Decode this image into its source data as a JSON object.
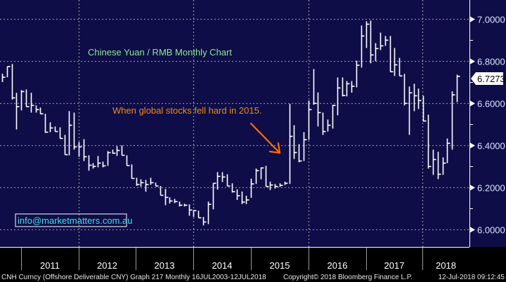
{
  "chart_data": {
    "type": "ohlc-bar",
    "title": "Chinese Yuan / RMB Monthly Chart",
    "annotation": "When global stocks fell hard in 2015.",
    "watermark_email": "info@marketmatters.com.au",
    "ylim": [
      5.92,
      7.09
    ],
    "yticks": [
      6.0,
      6.2,
      6.4,
      6.6,
      6.8,
      7.0
    ],
    "ytick_labels": [
      "6.0000",
      "6.2000",
      "6.4000",
      "6.6000",
      "6.8000",
      "7.0000"
    ],
    "last_price_label": "6.7273",
    "last_price": 6.7273,
    "x_tick_labels": [
      "2011",
      "2012",
      "2013",
      "2014",
      "2015",
      "2016",
      "2017",
      "2018"
    ],
    "grid": true,
    "bar_fields": [
      "high",
      "low",
      "close"
    ],
    "bars": [
      [
        6.74,
        6.7,
        6.723
      ],
      [
        6.774,
        6.723,
        6.774
      ],
      [
        6.786,
        6.617,
        6.625
      ],
      [
        6.649,
        6.475,
        6.583
      ],
      [
        6.662,
        6.565,
        6.655
      ],
      [
        6.665,
        6.583,
        6.583
      ],
      [
        6.649,
        6.555,
        6.589
      ],
      [
        6.589,
        6.555,
        6.569
      ],
      [
        6.579,
        6.549,
        6.549
      ],
      [
        6.549,
        6.459,
        6.462
      ],
      [
        6.509,
        6.462,
        6.482
      ],
      [
        6.489,
        6.465,
        6.465
      ],
      [
        6.485,
        6.432,
        6.432
      ],
      [
        6.449,
        6.355,
        6.355
      ],
      [
        6.562,
        6.352,
        6.495
      ],
      [
        6.555,
        6.379,
        6.392
      ],
      [
        6.415,
        6.345,
        6.392
      ],
      [
        6.429,
        6.325,
        6.345
      ],
      [
        6.352,
        6.279,
        6.305
      ],
      [
        6.315,
        6.289,
        6.299
      ],
      [
        6.349,
        6.295,
        6.315
      ],
      [
        6.322,
        6.295,
        6.302
      ],
      [
        6.372,
        6.302,
        6.365
      ],
      [
        6.379,
        6.359,
        6.362
      ],
      [
        6.395,
        6.349,
        6.375
      ],
      [
        6.399,
        6.352,
        6.352
      ],
      [
        6.352,
        6.303,
        6.303
      ],
      [
        6.309,
        6.242,
        6.242
      ],
      [
        6.245,
        6.207,
        6.213
      ],
      [
        6.238,
        6.203,
        6.222
      ],
      [
        6.235,
        6.179,
        6.213
      ],
      [
        6.245,
        6.212,
        6.222
      ],
      [
        6.222,
        6.206,
        6.206
      ],
      [
        6.206,
        6.162,
        6.162
      ],
      [
        6.192,
        6.115,
        6.152
      ],
      [
        6.152,
        6.123,
        6.135
      ],
      [
        6.145,
        6.125,
        6.132
      ],
      [
        6.132,
        6.109,
        6.115
      ],
      [
        6.122,
        6.109,
        6.115
      ],
      [
        6.119,
        6.065,
        6.092
      ],
      [
        6.092,
        6.059,
        6.089
      ],
      [
        6.089,
        6.055,
        6.055
      ],
      [
        6.059,
        6.019,
        6.035
      ],
      [
        6.132,
        6.025,
        6.119
      ],
      [
        6.219,
        6.095,
        6.219
      ],
      [
        6.272,
        6.189,
        6.252
      ],
      [
        6.272,
        6.225,
        6.249
      ],
      [
        6.262,
        6.206,
        6.206
      ],
      [
        6.219,
        6.175,
        6.179
      ],
      [
        6.19,
        6.14,
        6.16
      ],
      [
        6.18,
        6.12,
        6.13
      ],
      [
        6.16,
        6.12,
        6.14
      ],
      [
        6.241,
        6.15,
        6.216
      ],
      [
        6.289,
        6.216,
        6.279
      ],
      [
        6.295,
        6.238,
        6.292
      ],
      [
        6.302,
        6.204,
        6.204
      ],
      [
        6.227,
        6.187,
        6.211
      ],
      [
        6.216,
        6.194,
        6.204
      ],
      [
        6.219,
        6.202,
        6.209
      ],
      [
        6.227,
        6.211,
        6.219
      ],
      [
        6.596,
        6.216,
        6.442
      ],
      [
        6.495,
        6.335,
        6.365
      ],
      [
        6.405,
        6.319,
        6.325
      ],
      [
        6.462,
        6.325,
        6.426
      ],
      [
        6.612,
        6.426,
        6.569
      ],
      [
        6.762,
        6.592,
        6.599
      ],
      [
        6.651,
        6.489,
        6.555
      ],
      [
        6.555,
        6.449,
        6.465
      ],
      [
        6.522,
        6.465,
        6.495
      ],
      [
        6.592,
        6.479,
        6.589
      ],
      [
        6.722,
        6.542,
        6.672
      ],
      [
        6.722,
        6.632,
        6.636
      ],
      [
        6.705,
        6.632,
        6.692
      ],
      [
        6.705,
        6.65,
        6.68
      ],
      [
        6.802,
        6.675,
        6.78
      ],
      [
        6.969,
        6.769,
        6.919
      ],
      [
        6.989,
        6.862,
        6.975
      ],
      [
        6.992,
        6.789,
        6.829
      ],
      [
        6.885,
        6.799,
        6.859
      ],
      [
        6.935,
        6.852,
        6.872
      ],
      [
        6.919,
        6.872,
        6.899
      ],
      [
        6.919,
        6.749,
        6.749
      ],
      [
        6.862,
        6.729,
        6.782
      ],
      [
        6.815,
        6.729,
        6.729
      ],
      [
        6.739,
        6.589,
        6.599
      ],
      [
        6.679,
        6.449,
        6.649
      ],
      [
        6.692,
        6.562,
        6.635
      ],
      [
        6.669,
        6.572,
        6.612
      ],
      [
        6.635,
        6.512,
        6.515
      ],
      [
        6.545,
        6.289,
        6.299
      ],
      [
        6.379,
        6.259,
        6.332
      ],
      [
        6.369,
        6.239,
        6.262
      ],
      [
        6.342,
        6.259,
        6.315
      ],
      [
        6.432,
        6.315,
        6.409
      ],
      [
        6.656,
        6.379,
        6.639
      ],
      [
        6.735,
        6.605,
        6.7273
      ]
    ]
  },
  "footer": {
    "security": "CNH Curncy (Offshore Deliverable CNY) Graph 217  Monthly 16JUL2003-12JUL2018",
    "copyright": "Copyright© 2018 Bloomberg Finance L.P.",
    "timestamp": "12-Jul-2018 09:12:45"
  },
  "colors": {
    "background": "#0e0d47",
    "bars": "#ffffff",
    "grid": "#8a8a8a",
    "title": "#8de88d",
    "annotation": "#f08a1a",
    "arrow": "#ff6a10",
    "email": "#3ee0f0"
  }
}
